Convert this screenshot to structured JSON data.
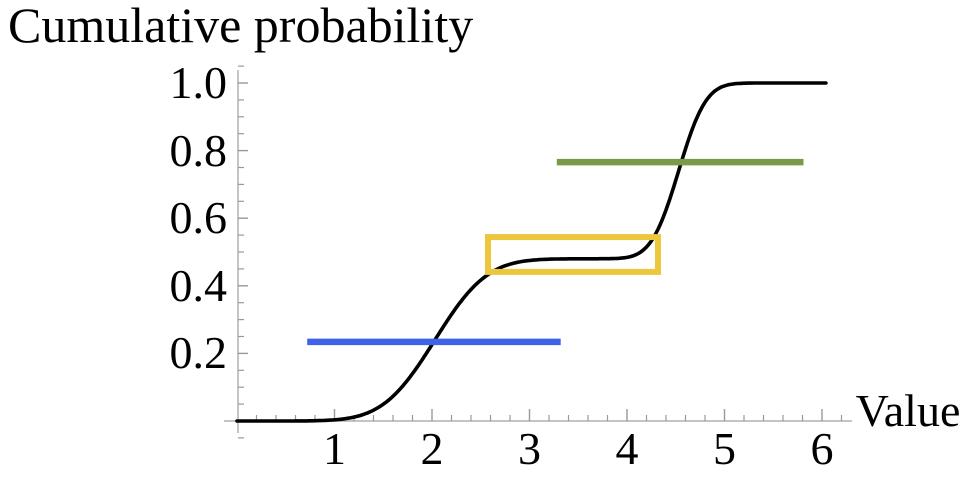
{
  "chart_data": {
    "type": "line",
    "title": "Cumulative probability",
    "xlabel": "Value",
    "ylabel": "Cumulative probability",
    "xlim": [
      0,
      6.3
    ],
    "ylim": [
      -0.05,
      1.05
    ],
    "grid": false,
    "legend": false,
    "x_ticks": [
      1,
      2,
      3,
      4,
      5,
      6
    ],
    "x_tick_labels": [
      "1",
      "2",
      "3",
      "4",
      "5",
      "6"
    ],
    "x_minor_tick_step": 0.2,
    "y_ticks": [
      0.2,
      0.4,
      0.6,
      0.8,
      1.0
    ],
    "y_tick_labels": [
      "0.2",
      "0.4",
      "0.6",
      "0.8",
      "1.0"
    ],
    "y_minor_tick_step": 0.05,
    "axis_color": "#b0b0b0",
    "tick_color": "#999999",
    "curve": {
      "name": "cumulative-distribution-curve",
      "color": "#000000",
      "model": "mixture-of-two-gaussian-cdfs",
      "components": [
        {
          "weight": 0.48,
          "mean": 2.03,
          "sd": 0.42
        },
        {
          "weight": 0.52,
          "mean": 4.53,
          "sd": 0.22
        }
      ],
      "x_start": 0,
      "x_end": 6.05,
      "key_points": [
        [
          0,
          0
        ],
        [
          1,
          0.005
        ],
        [
          1.5,
          0.05
        ],
        [
          2,
          0.23
        ],
        [
          2.5,
          0.42
        ],
        [
          3,
          0.475
        ],
        [
          3.5,
          0.48
        ],
        [
          4,
          0.485
        ],
        [
          4.25,
          0.53
        ],
        [
          4.56,
          0.77
        ],
        [
          5,
          0.99
        ],
        [
          5.3,
          1.0
        ],
        [
          6.05,
          1.0
        ]
      ]
    },
    "annotations": [
      {
        "kind": "segment",
        "name": "blue-interval-line",
        "color": "#3E63E8",
        "y": 0.234,
        "x_start": 0.72,
        "x_end": 3.32,
        "thickness": 6.5
      },
      {
        "kind": "rect",
        "name": "yellow-highlight-box",
        "color": "#ECC63D",
        "x_start": 2.574,
        "x_end": 4.318,
        "y_bottom": 0.441,
        "y_top": 0.544,
        "thickness": 6
      },
      {
        "kind": "segment",
        "name": "green-interval-line",
        "color": "#7A9A48",
        "y": 0.766,
        "x_start": 3.28,
        "x_end": 5.81,
        "thickness": 6.5
      }
    ]
  }
}
